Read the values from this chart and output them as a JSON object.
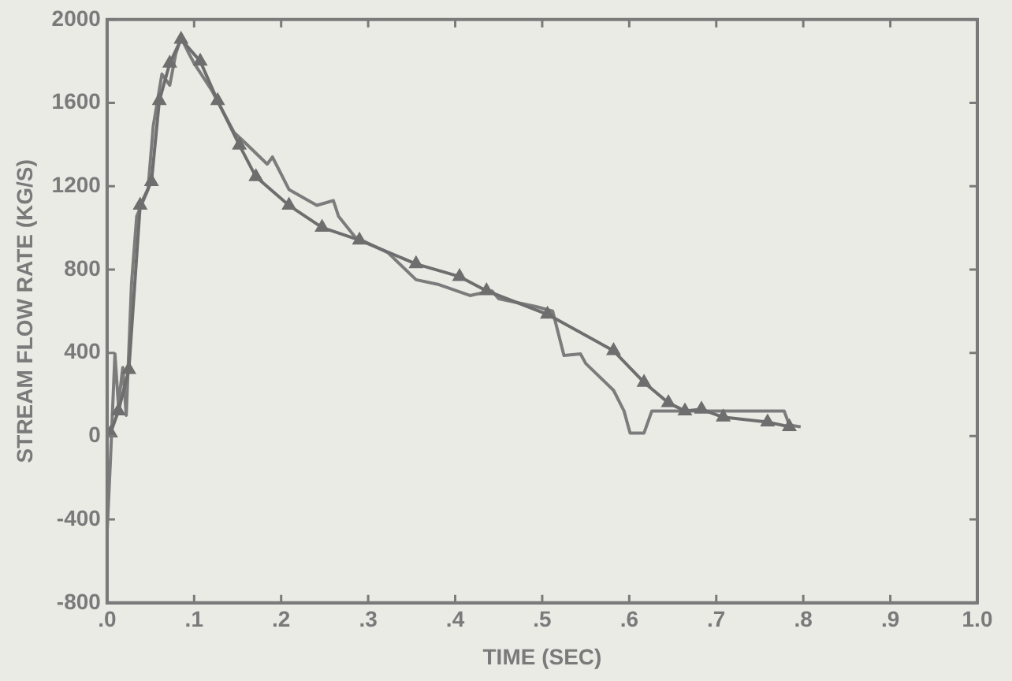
{
  "chart_data": {
    "type": "line",
    "xlabel": "TIME (SEC)",
    "ylabel": "STREAM FLOW RATE (KG/S)",
    "xlim": [
      0,
      1.0
    ],
    "ylim": [
      -800,
      2000
    ],
    "xticks": [
      {
        "value": 0,
        "label": ".0"
      },
      {
        "value": 0.1,
        "label": ".1"
      },
      {
        "value": 0.2,
        "label": ".2"
      },
      {
        "value": 0.3,
        "label": ".3"
      },
      {
        "value": 0.4,
        "label": ".4"
      },
      {
        "value": 0.5,
        "label": ".5"
      },
      {
        "value": 0.6,
        "label": ".6"
      },
      {
        "value": 0.7,
        "label": ".7"
      },
      {
        "value": 0.8,
        "label": ".8"
      },
      {
        "value": 0.9,
        "label": ".9"
      },
      {
        "value": 1.0,
        "label": "1.0"
      }
    ],
    "yticks": [
      -800,
      -400,
      0,
      400,
      800,
      1200,
      1600,
      2000
    ],
    "grid": false,
    "legend": false,
    "series": [
      {
        "color": "#7c7c7c",
        "marker": "none",
        "x": [
          0,
          0.004,
          0.009,
          0.013,
          0.018,
          0.022,
          0.028,
          0.034,
          0.047,
          0.053,
          0.063,
          0.072,
          0.079,
          0.085,
          0.095,
          0.1,
          0.12,
          0.146,
          0.158,
          0.184,
          0.19,
          0.209,
          0.241,
          0.26,
          0.266,
          0.285,
          0.323,
          0.355,
          0.38,
          0.417,
          0.442,
          0.45,
          0.493,
          0.512,
          0.525,
          0.544,
          0.55,
          0.582,
          0.594,
          0.601,
          0.617,
          0.626,
          0.651,
          0.689,
          0.778,
          0.784,
          0.797
        ],
        "values": [
          -463,
          -100,
          395,
          150,
          330,
          100,
          729,
          1055,
          1184,
          1488,
          1738,
          1685,
          1837,
          1913,
          1829,
          1790,
          1662,
          1457,
          1411,
          1306,
          1340,
          1184,
          1108,
          1131,
          1055,
          956,
          880,
          751,
          729,
          675,
          698,
          660,
          622,
          600,
          387,
          395,
          349,
          220,
          121,
          15,
          15,
          121,
          121,
          121,
          121,
          53,
          45
        ]
      },
      {
        "color": "#6e6e6e",
        "marker": "triangle",
        "x": [
          0.004,
          0.013,
          0.025,
          0.038,
          0.051,
          0.06,
          0.072,
          0.085,
          0.107,
          0.127,
          0.152,
          0.171,
          0.209,
          0.247,
          0.29,
          0.355,
          0.405,
          0.436,
          0.506,
          0.582,
          0.617,
          0.645,
          0.664,
          0.683,
          0.708,
          0.759,
          0.784
        ],
        "values": [
          15,
          121,
          319,
          1108,
          1222,
          1610,
          1790,
          1905,
          1800,
          1610,
          1397,
          1245,
          1108,
          1002,
          941,
          827,
          766,
          698,
          585,
          410,
          258,
          160,
          121,
          129,
          91,
          68,
          45
        ]
      }
    ]
  }
}
